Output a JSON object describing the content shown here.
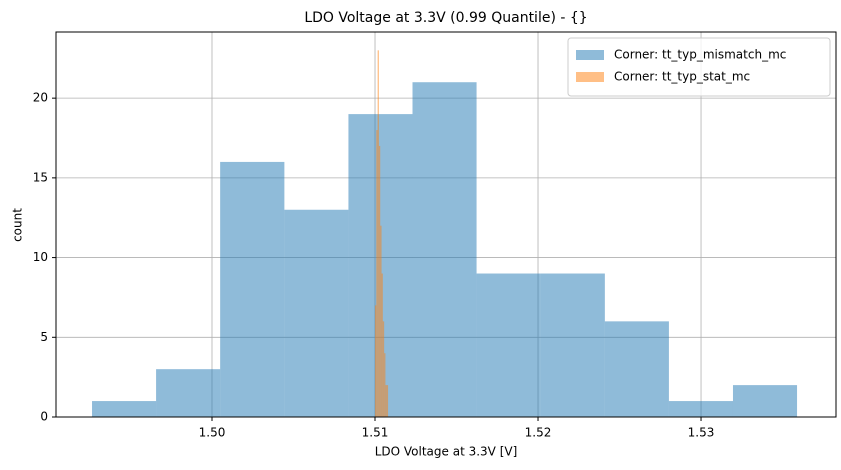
{
  "chart_data": {
    "type": "histogram",
    "title": "LDO Voltage at 3.3V (0.99 Quantile) - {}",
    "xlabel": "LDO Voltage at 3.3V [V]",
    "ylabel": "count",
    "series": [
      {
        "name": "Corner: tt_typ_mismatch_mc",
        "color": "#1f77b4",
        "opacity": 0.5,
        "bins": [
          1.49264,
          1.49657,
          1.5005,
          1.50444,
          1.50837,
          1.5123,
          1.51623,
          1.52016,
          1.5241,
          1.52803,
          1.53196,
          1.53589
        ],
        "values": [
          1,
          3,
          16,
          13,
          19,
          21,
          9,
          9,
          6,
          1,
          2
        ]
      },
      {
        "name": "Corner: tt_typ_stat_mc",
        "color": "#ff7f0e",
        "opacity": 0.5,
        "bins": [
          1.51,
          1.51008,
          1.51016,
          1.51024,
          1.51032,
          1.5104,
          1.51048,
          1.51056,
          1.51064,
          1.51072,
          1.5108
        ],
        "values": [
          7,
          18,
          23,
          17,
          12,
          9,
          6,
          4,
          2,
          2
        ]
      }
    ],
    "xlim": [
      1.49043,
      1.53828
    ],
    "ylim": [
      0,
      24.15
    ],
    "xticks": [
      {
        "value": 1.5,
        "label": "1.50"
      },
      {
        "value": 1.51,
        "label": "1.51"
      },
      {
        "value": 1.52,
        "label": "1.52"
      },
      {
        "value": 1.53,
        "label": "1.53"
      }
    ],
    "yticks": [
      0,
      5,
      10,
      15,
      20
    ],
    "grid": true,
    "legend": "upper right"
  }
}
